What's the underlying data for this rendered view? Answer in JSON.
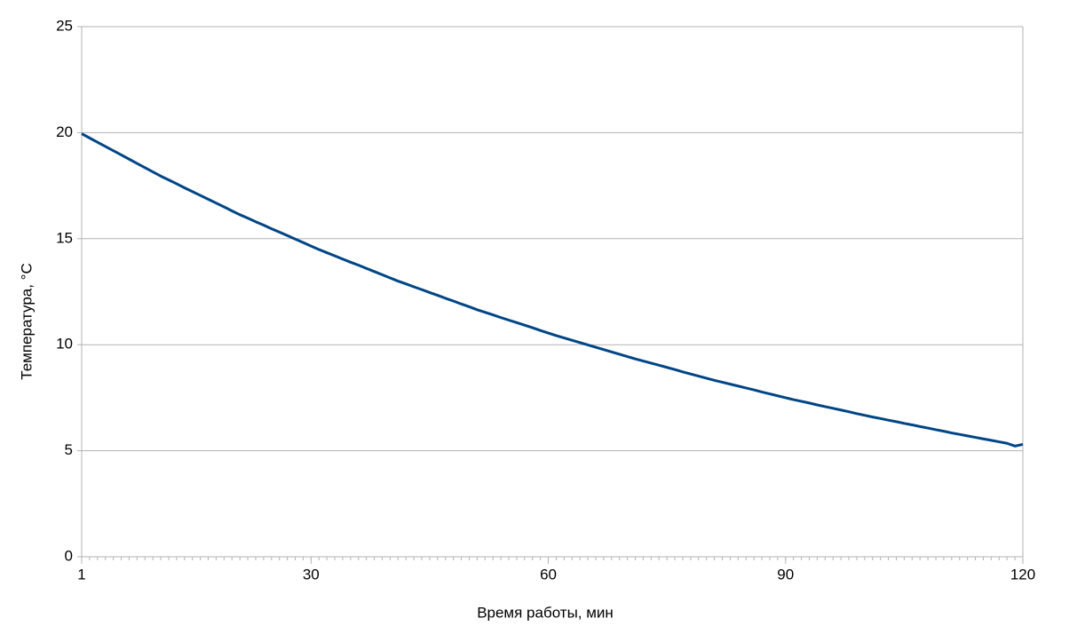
{
  "chart_data": {
    "type": "line",
    "x_label": "Время работы, мин",
    "y_label": "Температура, °C",
    "x": [
      1,
      2,
      3,
      4,
      5,
      6,
      7,
      8,
      9,
      10,
      11,
      12,
      13,
      14,
      15,
      16,
      17,
      18,
      19,
      20,
      21,
      22,
      23,
      24,
      25,
      26,
      27,
      28,
      29,
      30,
      31,
      32,
      33,
      34,
      35,
      36,
      37,
      38,
      39,
      40,
      41,
      42,
      43,
      44,
      45,
      46,
      47,
      48,
      49,
      50,
      51,
      52,
      53,
      54,
      55,
      56,
      57,
      58,
      59,
      60,
      61,
      62,
      63,
      64,
      65,
      66,
      67,
      68,
      69,
      70,
      71,
      72,
      73,
      74,
      75,
      76,
      77,
      78,
      79,
      80,
      81,
      82,
      83,
      84,
      85,
      86,
      87,
      88,
      89,
      90,
      91,
      92,
      93,
      94,
      95,
      96,
      97,
      98,
      99,
      100,
      101,
      102,
      103,
      104,
      105,
      106,
      107,
      108,
      109,
      110,
      111,
      112,
      113,
      114,
      115,
      116,
      117,
      118,
      119,
      120
    ],
    "series": [
      {
        "color": "#004586",
        "values": [
          19.95,
          19.75,
          19.55,
          19.35,
          19.15,
          18.95,
          18.75,
          18.55,
          18.35,
          18.15,
          17.95,
          17.77,
          17.59,
          17.4,
          17.22,
          17.04,
          16.86,
          16.68,
          16.5,
          16.31,
          16.13,
          15.97,
          15.8,
          15.64,
          15.47,
          15.31,
          15.15,
          14.98,
          14.82,
          14.65,
          14.49,
          14.34,
          14.19,
          14.04,
          13.89,
          13.75,
          13.6,
          13.45,
          13.3,
          13.15,
          13.0,
          12.87,
          12.73,
          12.6,
          12.46,
          12.33,
          12.19,
          12.06,
          11.92,
          11.79,
          11.65,
          11.53,
          11.41,
          11.28,
          11.16,
          11.04,
          10.92,
          10.8,
          10.67,
          10.55,
          10.43,
          10.32,
          10.21,
          10.1,
          9.99,
          9.88,
          9.77,
          9.66,
          9.55,
          9.44,
          9.33,
          9.23,
          9.13,
          9.03,
          8.93,
          8.83,
          8.72,
          8.62,
          8.52,
          8.42,
          8.32,
          8.23,
          8.14,
          8.05,
          7.96,
          7.87,
          7.77,
          7.68,
          7.59,
          7.5,
          7.41,
          7.33,
          7.25,
          7.16,
          7.08,
          7.0,
          6.92,
          6.84,
          6.75,
          6.67,
          6.59,
          6.52,
          6.44,
          6.37,
          6.29,
          6.22,
          6.14,
          6.07,
          5.99,
          5.92,
          5.84,
          5.77,
          5.7,
          5.63,
          5.56,
          5.49,
          5.42,
          5.35,
          5.22,
          5.3
        ]
      }
    ],
    "xlim": [
      1,
      120
    ],
    "xticks": [
      1,
      30,
      60,
      90,
      120
    ],
    "ylim": [
      0,
      25
    ],
    "yticks": [
      0,
      5,
      10,
      15,
      20,
      25
    ],
    "grid": true
  }
}
